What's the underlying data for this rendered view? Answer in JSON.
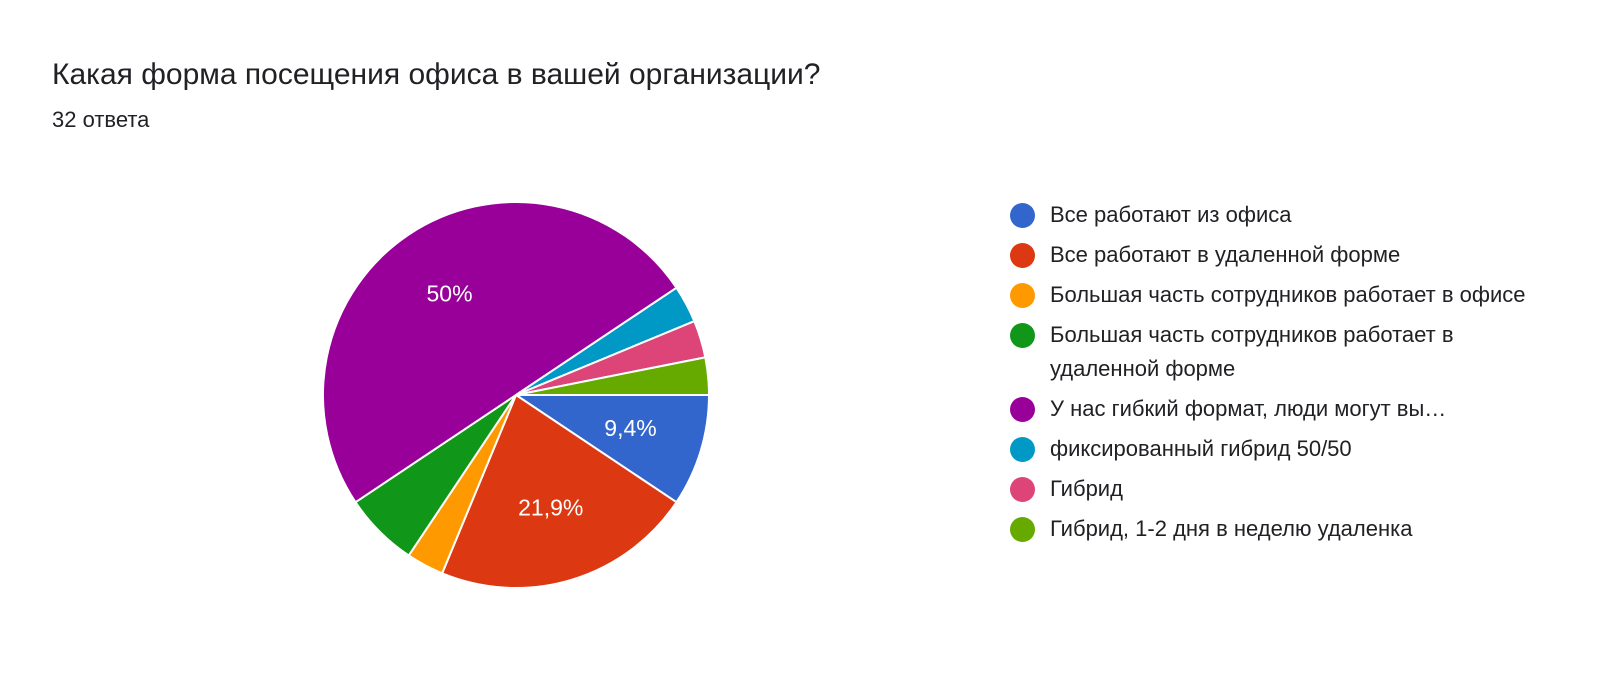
{
  "title": "Какая форма посещения офиса в вашей организации?",
  "subtitle": "32 ответа",
  "chart_data": {
    "type": "pie",
    "total": 32,
    "start": "3 o'clock",
    "direction": "clockwise",
    "slices": [
      {
        "label": "Все работают из офиса",
        "value": 3,
        "percent_label": "9,4%",
        "color": "#3366cc"
      },
      {
        "label": "Все работают в удаленной форме",
        "value": 7,
        "percent_label": "21,9%",
        "color": "#dc3912"
      },
      {
        "label": "Большая часть сотрудников работает в офисе",
        "value": 1,
        "percent_label": "",
        "color": "#ff9900"
      },
      {
        "label": "Большая часть сотрудников работает в удаленной форме",
        "value": 2,
        "percent_label": "",
        "color": "#109618"
      },
      {
        "label": "У нас гибкий формат, люди могут вы…",
        "value": 16,
        "percent_label": "50%",
        "color": "#990099"
      },
      {
        "label": "фиксированный гибрид 50/50",
        "value": 1,
        "percent_label": "",
        "color": "#0099c6"
      },
      {
        "label": "Гибрид",
        "value": 1,
        "percent_label": "",
        "color": "#dd4477"
      },
      {
        "label": "Гибрид, 1-2 дня в неделю удаленка",
        "value": 1,
        "percent_label": "",
        "color": "#66aa00"
      }
    ],
    "legend_position": "right"
  }
}
